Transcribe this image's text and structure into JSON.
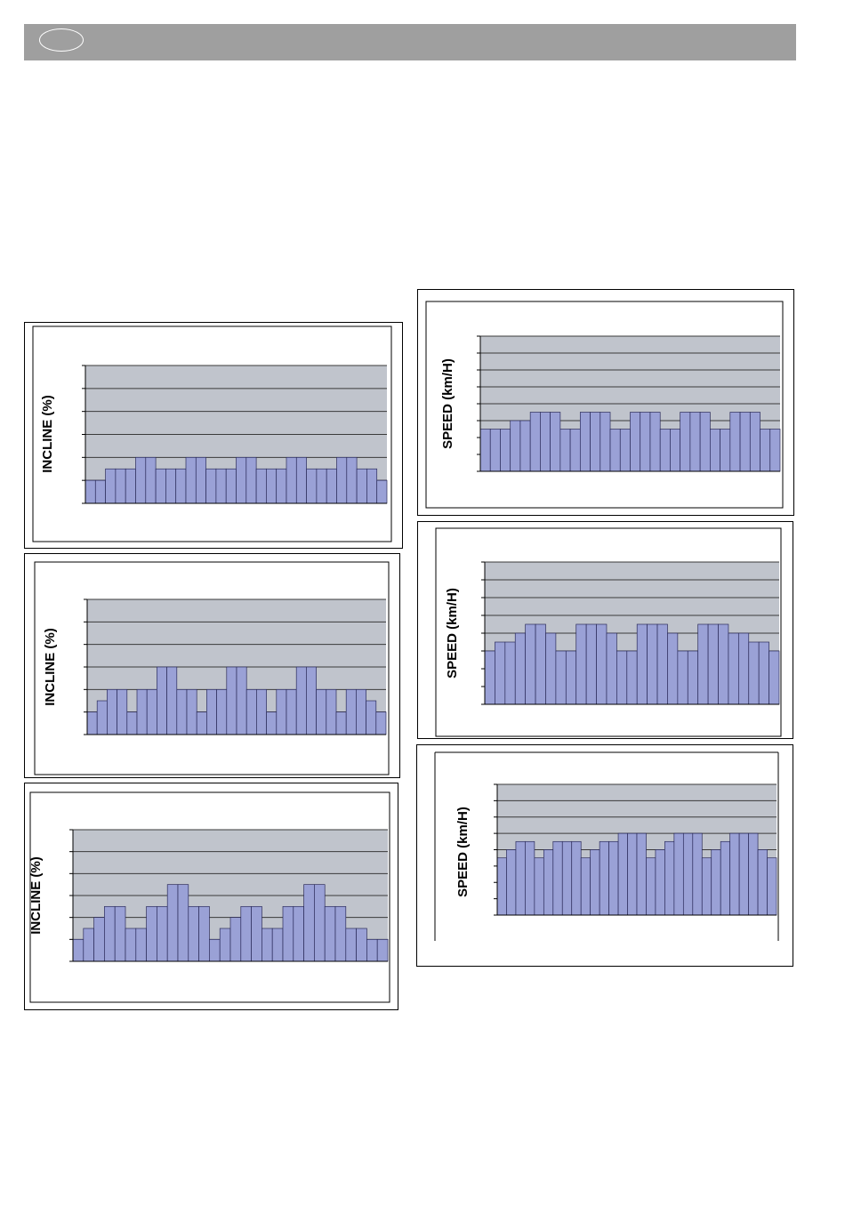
{
  "header": {
    "color": "#9f9f9f"
  },
  "chart_data": [
    {
      "type": "bar",
      "ylabel": "INCLINE (%)",
      "ylim": [
        0,
        6
      ],
      "grid": true,
      "values": [
        1,
        1,
        1.5,
        1.5,
        1.5,
        2,
        2,
        1.5,
        1.5,
        1.5,
        2,
        2,
        1.5,
        1.5,
        1.5,
        2,
        2,
        1.5,
        1.5,
        1.5,
        2,
        2,
        1.5,
        1.5,
        1.5,
        2,
        2,
        1.5,
        1.5,
        1
      ]
    },
    {
      "type": "bar",
      "ylabel": "INCLINE (%)",
      "ylim": [
        0,
        6
      ],
      "grid": true,
      "values": [
        1,
        1.5,
        2,
        2,
        1,
        2,
        2,
        3,
        3,
        2,
        2,
        1,
        2,
        2,
        3,
        3,
        2,
        2,
        1,
        2,
        2,
        3,
        3,
        2,
        2,
        1,
        2,
        2,
        1.5,
        1
      ]
    },
    {
      "type": "bar",
      "ylabel": "INCLINE (%)",
      "ylim": [
        0,
        6
      ],
      "grid": true,
      "values": [
        1,
        1.5,
        2,
        2.5,
        2.5,
        1.5,
        1.5,
        2.5,
        2.5,
        3.5,
        3.5,
        2.5,
        2.5,
        1,
        1.5,
        2,
        2.5,
        2.5,
        1.5,
        1.5,
        2.5,
        2.5,
        3.5,
        3.5,
        2.5,
        2.5,
        1.5,
        1.5,
        1,
        1
      ]
    },
    {
      "type": "bar",
      "ylabel": "SPEED (km/H)",
      "ylim": [
        0,
        8
      ],
      "grid": true,
      "values": [
        2.5,
        2.5,
        2.5,
        3,
        3,
        3.5,
        3.5,
        3.5,
        2.5,
        2.5,
        3.5,
        3.5,
        3.5,
        2.5,
        2.5,
        3.5,
        3.5,
        3.5,
        2.5,
        2.5,
        3.5,
        3.5,
        3.5,
        2.5,
        2.5,
        3.5,
        3.5,
        3.5,
        2.5,
        2.5
      ]
    },
    {
      "type": "bar",
      "ylabel": "SPEED (km/H)",
      "ylim": [
        0,
        8
      ],
      "grid": true,
      "values": [
        3,
        3.5,
        3.5,
        4,
        4.5,
        4.5,
        4,
        3,
        3,
        4.5,
        4.5,
        4.5,
        4,
        3,
        3,
        4.5,
        4.5,
        4.5,
        4,
        3,
        3,
        4.5,
        4.5,
        4.5,
        4,
        4,
        3.5,
        3.5,
        3
      ]
    },
    {
      "type": "bar",
      "ylabel": "SPEED (km/H)",
      "ylim": [
        0,
        8
      ],
      "grid": true,
      "values": [
        3.5,
        4,
        4.5,
        4.5,
        3.5,
        4,
        4.5,
        4.5,
        4.5,
        3.5,
        4,
        4.5,
        4.5,
        5,
        5,
        5,
        3.5,
        4,
        4.5,
        5,
        5,
        5,
        3.5,
        4,
        4.5,
        5,
        5,
        5,
        4,
        3.5
      ]
    }
  ],
  "colors": {
    "plot_bg": "#c0c4cc",
    "bar_fill": "#9aa1d6",
    "bar_stroke": "#2b2b5a",
    "grid": "#3a3a3a"
  }
}
